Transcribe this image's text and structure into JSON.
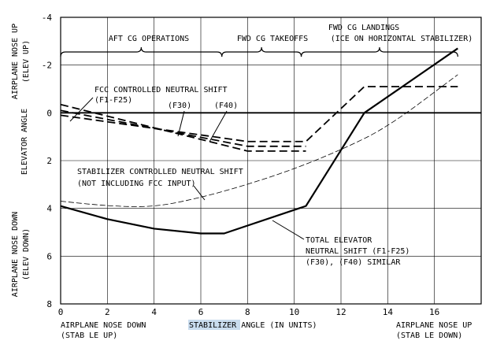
{
  "chart_data": {
    "type": "line",
    "xlim": [
      0,
      18
    ],
    "ylim": [
      -4,
      8
    ],
    "x_ticks": [
      "0",
      "2",
      "4",
      "6",
      "8",
      "10",
      "12",
      "14",
      "16"
    ],
    "y_ticks": [
      "-4",
      "-2",
      "0",
      "2",
      "4",
      "6",
      "8"
    ],
    "xlabel": {
      "highlighted": "STABILIZER",
      "rest": " ANGLE (IN UNITS)"
    },
    "x_end_labels": {
      "left": [
        "AIRPLANE NOSE DOWN",
        "(STAB LE UP)"
      ],
      "right": [
        "AIRPLANE NOSE UP",
        "(STAB LE DOWN)"
      ]
    },
    "y_side_labels": {
      "top": [
        "AIRPLANE NOSE UP",
        "(ELEV UP)"
      ],
      "middle": "ELEVATOR ANGLE",
      "bottom": [
        "AIRPLANE NOSE DOWN",
        "(ELEV DOWN)"
      ]
    },
    "regions": [
      {
        "label": "AFT CG OPERATIONS",
        "x0": 0,
        "x1": 6.9
      },
      {
        "label": "FWD CG TAKEOFFS",
        "x0": 6.9,
        "x1": 10.3
      },
      {
        "label": [
          "FWD CG LANDINGS",
          "(ICE ON HORIZONTAL STABILIZER)"
        ],
        "x0": 10.3,
        "x1": 17
      }
    ],
    "series": [
      {
        "style": "solid-thick",
        "x": [
          0,
          2,
          4,
          6,
          7,
          10.5,
          13,
          17
        ],
        "y": [
          3.9,
          4.45,
          4.85,
          5.05,
          5.05,
          3.9,
          0,
          -2.7
        ]
      },
      {
        "style": "dash-long",
        "x": [
          0,
          8,
          10.5,
          13,
          17
        ],
        "y": [
          0.1,
          1.2,
          1.2,
          -1.1,
          -1.1
        ]
      },
      {
        "style": "dash-long",
        "x": [
          0,
          8,
          10.5
        ],
        "y": [
          -0.1,
          1.4,
          1.4
        ]
      },
      {
        "style": "dash-long",
        "x": [
          0,
          8,
          10.5
        ],
        "y": [
          -0.35,
          1.6,
          1.6
        ]
      },
      {
        "style": "dash-light",
        "x": [
          0,
          2,
          4,
          6,
          8,
          10,
          12,
          14,
          17
        ],
        "y": [
          3.7,
          3.9,
          3.95,
          3.55,
          3.0,
          2.35,
          1.55,
          0.6,
          -1.6
        ]
      }
    ],
    "annotations": [
      {
        "id": "fcc",
        "text": [
          "FCC CONTROLLED NEUTRAL SHIFT",
          "(F1-F25)"
        ]
      },
      {
        "id": "f30",
        "text": "(F30)"
      },
      {
        "id": "f40",
        "text": "(F40)"
      },
      {
        "id": "stab",
        "text": [
          "STABILIZER CONTROLLED NEUTRAL SHIFT",
          "(NOT INCLUDING FCC INPUT)"
        ]
      },
      {
        "id": "total",
        "text": [
          "TOTAL ELEVATOR",
          "NEUTRAL SHIFT (F1-F25)",
          "(F30), (F40) SIMILAR"
        ]
      }
    ]
  }
}
